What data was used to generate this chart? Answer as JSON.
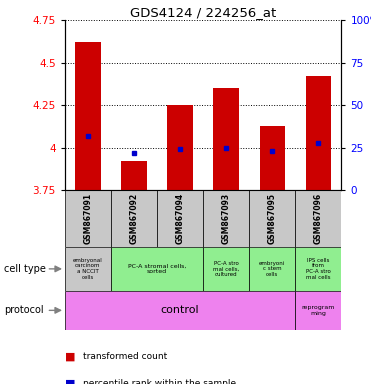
{
  "title": "GDS4124 / 224256_at",
  "samples": [
    "GSM867091",
    "GSM867092",
    "GSM867094",
    "GSM867093",
    "GSM867095",
    "GSM867096"
  ],
  "transformed_counts": [
    4.62,
    3.92,
    4.25,
    4.35,
    4.13,
    4.42
  ],
  "percentile_ranks": [
    32,
    22,
    24,
    25,
    23,
    28
  ],
  "bar_bottom": 3.75,
  "ylim_left": [
    3.75,
    4.75
  ],
  "ylim_right": [
    0,
    100
  ],
  "yticks_left": [
    3.75,
    4.0,
    4.25,
    4.5,
    4.75
  ],
  "yticks_right": [
    0,
    25,
    50,
    75,
    100
  ],
  "bar_color": "#cc0000",
  "dot_color": "#0000cc",
  "sample_box_color": "#c8c8c8",
  "cell_type_colors": [
    "#c8c8c8",
    "#90ee90",
    "#90ee90",
    "#90ee90",
    "#90ee90",
    "#90ee90"
  ],
  "cell_type_labels": [
    "embryonal\ncarcinoм\na NCCIT\ncells",
    "PC-A stromal cells,\nsorted",
    "",
    "PC-A stro\nmal cells,\ncultured",
    "embryoni\nc stem\ncells",
    "IPS cells\nfrom\nPC-A stro\nmal cells"
  ],
  "protocol_control_color": "#ee82ee",
  "protocol_reprog_color": "#ee82ee",
  "legend_red_label": "transformed count",
  "legend_blue_label": "percentile rank within the sample",
  "cell_type_row_label": "cell type",
  "protocol_row_label": "protocol"
}
